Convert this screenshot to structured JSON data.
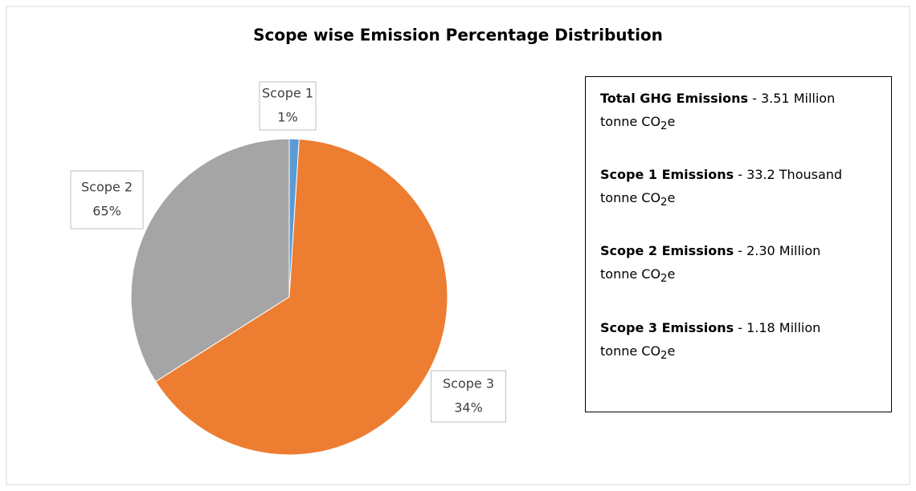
{
  "chart_data": {
    "type": "pie",
    "title": "Scope wise Emission Percentage Distribution",
    "categories": [
      "Scope 1",
      "Scope 2",
      "Scope 3"
    ],
    "values": [
      1,
      65,
      34
    ],
    "value_labels": [
      "1%",
      "65%",
      "34%"
    ],
    "colors": [
      "#5b9bd5",
      "#ed7d31",
      "#a5a5a5"
    ]
  },
  "notes": [
    {
      "label": "Total GHG Emissions",
      "text": "- 3.51 Million",
      "unit": "tonne CO",
      "sub": "2",
      "suffix": "e"
    },
    {
      "label": "Scope 1 Emissions",
      "text": "- 33.2 Thousand",
      "unit": "tonne CO",
      "sub": "2",
      "suffix": "e"
    },
    {
      "label": "Scope 2 Emissions",
      "text": "- 2.30 Million",
      "unit": "tonne CO",
      "sub": "2",
      "suffix": "e"
    },
    {
      "label": "Scope 3 Emissions",
      "text": "- 1.18 Million",
      "unit": "tonne CO",
      "sub": "2",
      "suffix": "e"
    }
  ]
}
